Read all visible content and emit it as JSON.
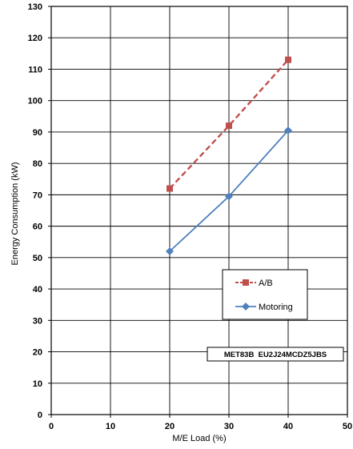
{
  "chart_data": {
    "type": "line",
    "xlabel": "M/E Load (%)",
    "ylabel": "Energy Consumption (kW)",
    "xlim": [
      0,
      50
    ],
    "ylim": [
      0,
      130
    ],
    "xticks": [
      0,
      10,
      20,
      30,
      40,
      50
    ],
    "yticks": [
      0,
      10,
      20,
      30,
      40,
      50,
      60,
      70,
      80,
      90,
      100,
      110,
      120,
      130
    ],
    "grid": true,
    "legend_position": "right",
    "series": [
      {
        "name": "A/B",
        "color": "#c0504d",
        "marker": "square",
        "dash": "dashed",
        "x": [
          20,
          30,
          40
        ],
        "y": [
          72,
          92,
          113
        ]
      },
      {
        "name": "Motoring",
        "color": "#4f81bd",
        "marker": "diamond",
        "dash": "solid",
        "x": [
          20,
          30,
          40
        ],
        "y": [
          52,
          69.5,
          90.5
        ]
      }
    ],
    "annotation": "MET83B  EU2J24MCDZ5JBS"
  }
}
